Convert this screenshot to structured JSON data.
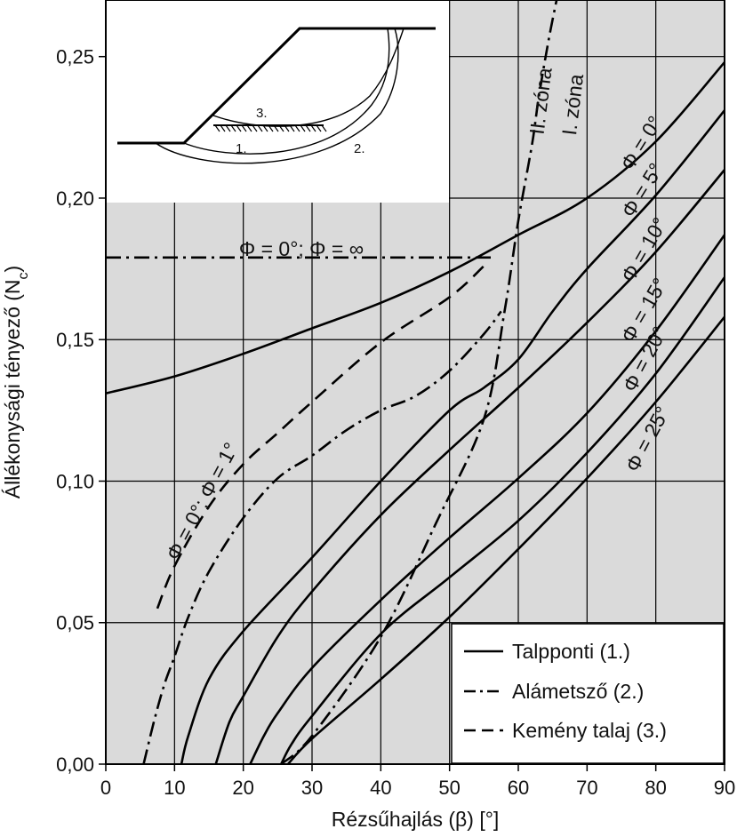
{
  "colors": {
    "plot_background": "#dadada",
    "grid": "#000000",
    "curve": "#000000",
    "inset_background": "#ffffff",
    "legend_background": "#ffffff"
  },
  "chart_data": {
    "type": "line",
    "xlabel": "Rézsűhajlás (β) [°]",
    "ylabel_main": "Állékonysági tényező (N",
    "ylabel_sub": "c",
    "ylabel_close": ")",
    "xlim": [
      0,
      90
    ],
    "ylim": [
      0,
      0.27
    ],
    "grid": true,
    "x_ticks": [
      {
        "value": 0,
        "label": "0"
      },
      {
        "value": 10,
        "label": "10"
      },
      {
        "value": 20,
        "label": "20"
      },
      {
        "value": 30,
        "label": "30"
      },
      {
        "value": 40,
        "label": "40"
      },
      {
        "value": 50,
        "label": "50"
      },
      {
        "value": 60,
        "label": "60"
      },
      {
        "value": 70,
        "label": "70"
      },
      {
        "value": 80,
        "label": "80"
      },
      {
        "value": 90,
        "label": "90"
      }
    ],
    "y_ticks": [
      {
        "value": 0.0,
        "label": "0,00"
      },
      {
        "value": 0.05,
        "label": "0,05"
      },
      {
        "value": 0.1,
        "label": "0,10"
      },
      {
        "value": 0.15,
        "label": "0,15"
      },
      {
        "value": 0.2,
        "label": "0,20"
      },
      {
        "value": 0.25,
        "label": "0,25"
      }
    ],
    "legend": {
      "placement": "bottom-right",
      "entries": [
        {
          "label": "Talpponti (1.)",
          "style": "solid"
        },
        {
          "label": "Alámetsző (2.)",
          "style": "dashdot"
        },
        {
          "label": "Kemény talaj (3.)",
          "style": "dashed"
        }
      ]
    },
    "series": [
      {
        "label": "Φ = 0°",
        "style": "solid",
        "x": [
          0,
          10,
          20,
          30,
          40,
          50,
          60,
          70,
          80,
          90
        ],
        "y": [
          0.131,
          0.137,
          0.145,
          0.154,
          0.163,
          0.174,
          0.187,
          0.2,
          0.22,
          0.248
        ]
      },
      {
        "label": "Φ = 5°",
        "style": "solid",
        "x": [
          11,
          12,
          15,
          20,
          30,
          40,
          50,
          55,
          60,
          65,
          70,
          80,
          90
        ],
        "y": [
          0.0,
          0.01,
          0.03,
          0.047,
          0.073,
          0.1,
          0.125,
          0.133,
          0.143,
          0.16,
          0.175,
          0.201,
          0.231
        ]
      },
      {
        "label": "Φ = 10°",
        "style": "solid",
        "x": [
          16,
          18,
          20,
          25,
          30,
          40,
          50,
          60,
          70,
          80,
          90
        ],
        "y": [
          0.0,
          0.015,
          0.024,
          0.045,
          0.061,
          0.088,
          0.111,
          0.133,
          0.156,
          0.181,
          0.21
        ]
      },
      {
        "label": "Φ = 15°",
        "style": "solid",
        "x": [
          21,
          23,
          25,
          30,
          40,
          50,
          60,
          70,
          80,
          90
        ],
        "y": [
          0.0,
          0.01,
          0.018,
          0.034,
          0.058,
          0.08,
          0.101,
          0.124,
          0.153,
          0.187
        ]
      },
      {
        "label": "Φ = 20°",
        "style": "solid",
        "x": [
          25.5,
          27,
          30,
          40,
          50,
          60,
          70,
          80,
          90
        ],
        "y": [
          0.0,
          0.007,
          0.017,
          0.046,
          0.066,
          0.086,
          0.11,
          0.138,
          0.172
        ]
      },
      {
        "label": "Φ = 25°",
        "style": "solid",
        "x": [
          26.5,
          30,
          40,
          50,
          60,
          70,
          80,
          90
        ],
        "y": [
          0.0,
          0.009,
          0.03,
          0.052,
          0.076,
          0.101,
          0.128,
          0.158
        ]
      },
      {
        "label": "Φ = 0°; Φ = 1°",
        "style": "dashed",
        "x": [
          7.5,
          10,
          15,
          20,
          25,
          30,
          40,
          50,
          55
        ],
        "y": [
          0.055,
          0.07,
          0.091,
          0.106,
          0.117,
          0.128,
          0.149,
          0.165,
          0.176
        ]
      },
      {
        "label": "Φ = 0°; Φ = 1°",
        "style": "dashdot",
        "x": [
          5.5,
          7,
          8.5,
          10,
          12,
          15,
          20,
          25,
          30,
          35,
          40,
          45,
          50,
          55,
          57.5
        ],
        "y": [
          0.0,
          0.015,
          0.028,
          0.038,
          0.052,
          0.068,
          0.087,
          0.101,
          0.109,
          0.118,
          0.125,
          0.13,
          0.139,
          0.152,
          0.16
        ]
      },
      {
        "label": "Φ = 0°; Φ = ∞",
        "style": "dashdot",
        "x": [
          0,
          56
        ],
        "y": [
          0.179,
          0.179
        ]
      },
      {
        "label": "I. zóna / II. zóna",
        "style": "dashdot",
        "x": [
          25.5,
          30,
          40,
          48,
          55,
          58,
          60,
          62,
          63,
          64.5,
          66
        ],
        "y": [
          0.0,
          0.01,
          0.045,
          0.085,
          0.122,
          0.16,
          0.192,
          0.219,
          0.236,
          0.257,
          0.275
        ]
      }
    ],
    "annotations": [
      {
        "id": "phi0",
        "text": "Φ = 0°"
      },
      {
        "id": "phi5",
        "text": "Φ = 5°"
      },
      {
        "id": "phi10",
        "text": "Φ = 10°"
      },
      {
        "id": "phi15",
        "text": "Φ = 15°"
      },
      {
        "id": "phi20",
        "text": "Φ = 20°"
      },
      {
        "id": "phi25",
        "text": "Φ = 25°"
      },
      {
        "id": "phi_low",
        "text": "Φ = 0°; Φ = 1°"
      },
      {
        "id": "phi_inf",
        "text": "Φ = 0°; Φ = ∞"
      },
      {
        "id": "zone2",
        "text": "II. zóna"
      },
      {
        "id": "zone1",
        "text": "I. zóna"
      }
    ]
  },
  "inset": {
    "labels": [
      "1.",
      "2.",
      "3."
    ]
  }
}
